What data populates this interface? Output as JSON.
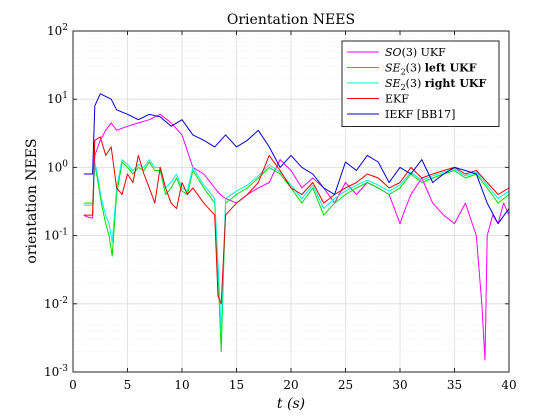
{
  "chart_data": {
    "type": "line",
    "title": "Orientation NEES",
    "xlabel": "t (s)",
    "ylabel": "orientation NEES",
    "xlim": [
      0,
      40
    ],
    "ylim": [
      0.001,
      100
    ],
    "yscale": "log",
    "x_ticks": [
      0,
      5,
      10,
      15,
      20,
      25,
      30,
      35,
      40
    ],
    "y_ticks": [
      0.001,
      0.01,
      0.1,
      1,
      10,
      100
    ],
    "y_tick_labels": [
      {
        "base": "10",
        "exp": "-3"
      },
      {
        "base": "10",
        "exp": "-2"
      },
      {
        "base": "10",
        "exp": "-1"
      },
      {
        "base": "10",
        "exp": "0"
      },
      {
        "base": "10",
        "exp": "1"
      },
      {
        "base": "10",
        "exp": "2"
      }
    ],
    "grid": true,
    "legend_position": "top-right",
    "series": [
      {
        "name": "SO(3) UKF",
        "legend": {
          "parts": [
            {
              "t": "SO",
              "it": true
            },
            {
              "t": "(3) UKF"
            }
          ]
        },
        "color": "#ff00ff",
        "x": [
          1,
          1.2,
          1.8,
          2,
          2.5,
          3,
          3.5,
          4,
          5,
          6,
          7,
          8,
          9,
          10,
          11,
          12,
          13,
          13.5,
          14,
          15,
          16,
          17,
          18,
          19,
          20,
          21,
          22,
          23,
          24,
          25,
          26,
          27,
          28,
          29,
          30,
          30.5,
          31,
          32,
          33,
          34,
          35,
          36,
          37,
          37.5,
          37.8,
          38,
          38.5,
          39,
          39.5,
          40
        ],
        "y": [
          0.2,
          0.19,
          0.18,
          1.5,
          2.5,
          3.5,
          4.5,
          3.5,
          4,
          4.5,
          5,
          6,
          4.5,
          3,
          1,
          0.8,
          0.5,
          0.4,
          0.35,
          0.3,
          0.4,
          0.5,
          0.6,
          1.3,
          0.9,
          0.5,
          0.7,
          0.5,
          0.3,
          0.6,
          0.4,
          0.6,
          0.5,
          0.4,
          0.15,
          0.25,
          0.4,
          0.7,
          0.3,
          0.2,
          0.15,
          0.3,
          0.1,
          0.01,
          0.0015,
          0.1,
          0.2,
          0.15,
          0.3,
          0.2
        ]
      },
      {
        "name": "SE2(3) left UKF",
        "legend": {
          "parts": [
            {
              "t": "SE",
              "it": true
            },
            {
              "t": "2",
              "sub": true
            },
            {
              "t": "(3) "
            },
            {
              "t": "left UKF",
              "bold": true
            }
          ]
        },
        "color": "#00dd00",
        "x": [
          1,
          1.2,
          1.8,
          2,
          2.3,
          2.6,
          3,
          3.3,
          3.6,
          4,
          4.5,
          5,
          5.5,
          6,
          6.5,
          7,
          7.5,
          8,
          8.5,
          9,
          9.5,
          10,
          10.5,
          11,
          12,
          13,
          13.3,
          13.6,
          14,
          15,
          16,
          17,
          18,
          19,
          20,
          21,
          22,
          23,
          24,
          25,
          26,
          27,
          28,
          29,
          30,
          31,
          32,
          33,
          34,
          35,
          36,
          37,
          38,
          39,
          40
        ],
        "y": [
          0.3,
          0.3,
          0.3,
          1.1,
          0.6,
          0.3,
          0.15,
          0.1,
          0.05,
          0.4,
          1.2,
          1,
          0.8,
          1,
          0.9,
          1.2,
          0.9,
          0.9,
          0.4,
          0.5,
          0.7,
          0.45,
          0.4,
          0.9,
          0.5,
          0.3,
          0.03,
          0.002,
          0.3,
          0.4,
          0.5,
          0.7,
          1,
          0.8,
          0.5,
          0.3,
          0.5,
          0.2,
          0.3,
          0.4,
          0.5,
          0.6,
          0.5,
          0.4,
          0.5,
          0.8,
          0.6,
          0.7,
          0.8,
          0.9,
          0.7,
          0.8,
          0.5,
          0.3,
          0.4
        ]
      },
      {
        "name": "SE2(3) right UKF",
        "legend": {
          "parts": [
            {
              "t": "SE",
              "it": true
            },
            {
              "t": "2",
              "sub": true
            },
            {
              "t": "(3) "
            },
            {
              "t": "right UKF",
              "bold": true
            }
          ]
        },
        "color": "#00f5e0",
        "x": [
          1,
          1.2,
          1.8,
          2,
          2.3,
          2.6,
          3,
          3.3,
          3.6,
          4,
          4.5,
          5,
          5.5,
          6,
          6.5,
          7,
          7.5,
          8,
          8.5,
          9,
          9.5,
          10,
          10.5,
          11,
          12,
          13,
          13.3,
          13.6,
          14,
          15,
          16,
          17,
          18,
          19,
          20,
          21,
          22,
          23,
          24,
          25,
          26,
          27,
          28,
          29,
          30,
          31,
          32,
          33,
          34,
          35,
          36,
          37,
          38,
          39,
          40
        ],
        "y": [
          0.28,
          0.28,
          0.28,
          1.2,
          0.7,
          0.35,
          0.2,
          0.15,
          0.08,
          0.5,
          1.3,
          1.1,
          0.9,
          1.1,
          1,
          1.3,
          1,
          1,
          0.5,
          0.6,
          0.8,
          0.5,
          0.45,
          1,
          0.55,
          0.35,
          0.04,
          0.004,
          0.35,
          0.45,
          0.55,
          0.75,
          1.1,
          0.85,
          0.55,
          0.35,
          0.55,
          0.25,
          0.35,
          0.45,
          0.55,
          0.65,
          0.55,
          0.45,
          0.55,
          0.85,
          0.65,
          0.75,
          0.85,
          0.95,
          0.75,
          0.85,
          0.55,
          0.35,
          0.45
        ]
      },
      {
        "name": "EKF",
        "legend": {
          "parts": [
            {
              "t": "EKF"
            }
          ]
        },
        "color": "#ee0000",
        "x": [
          1,
          1.2,
          1.8,
          2,
          2.5,
          3,
          3.5,
          4,
          4.5,
          5,
          5.5,
          6,
          6.5,
          7,
          7.5,
          8,
          8.5,
          9,
          9.5,
          10,
          10.5,
          11,
          12,
          13,
          13.3,
          13.6,
          14,
          15,
          16,
          17,
          18,
          19,
          20,
          21,
          22,
          23,
          24,
          25,
          26,
          27,
          28,
          29,
          30,
          31,
          32,
          33,
          34,
          35,
          36,
          37,
          38,
          39,
          40
        ],
        "y": [
          0.2,
          0.2,
          0.2,
          2.5,
          2.8,
          1.5,
          2,
          0.5,
          0.4,
          0.8,
          0.6,
          1.5,
          0.8,
          0.5,
          0.3,
          1,
          0.5,
          0.3,
          0.25,
          0.6,
          0.4,
          0.5,
          0.3,
          0.2,
          0.013,
          0.01,
          0.2,
          0.3,
          0.4,
          0.6,
          1.5,
          0.9,
          0.5,
          0.4,
          0.6,
          0.3,
          0.4,
          0.5,
          0.6,
          0.8,
          0.7,
          0.5,
          0.6,
          1,
          0.7,
          0.8,
          0.9,
          1,
          0.8,
          0.9,
          0.6,
          0.4,
          0.5
        ]
      },
      {
        "name": "IEKF [BB17]",
        "legend": {
          "parts": [
            {
              "t": "IEKF [BB17]"
            }
          ]
        },
        "color": "#0000cc",
        "x": [
          1,
          1.2,
          1.8,
          2,
          2.5,
          3,
          3.5,
          4,
          5,
          6,
          7,
          8,
          9,
          10,
          11,
          12,
          13,
          14,
          15,
          16,
          17,
          18,
          19,
          20,
          21,
          22,
          23,
          24,
          25,
          26,
          27,
          28,
          29,
          30,
          31,
          32,
          33,
          34,
          35,
          36,
          37,
          38,
          39,
          40
        ],
        "y": [
          0.8,
          0.8,
          0.8,
          8,
          12,
          11,
          10,
          7,
          6,
          5,
          6,
          5.5,
          4,
          5,
          3,
          2.5,
          2,
          3,
          2,
          2.5,
          3.5,
          2,
          1,
          1.5,
          1,
          0.8,
          0.5,
          0.4,
          1.2,
          0.9,
          1.5,
          1.2,
          0.6,
          1,
          0.8,
          1.3,
          0.6,
          0.8,
          1,
          0.9,
          0.8,
          0.3,
          0.15,
          0.25
        ]
      }
    ]
  }
}
